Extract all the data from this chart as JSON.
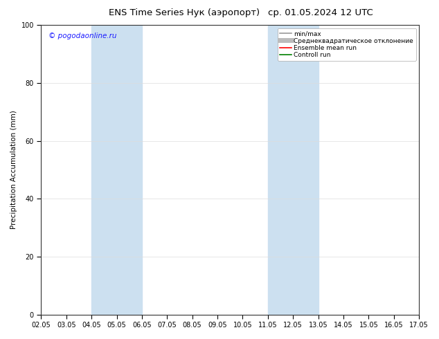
{
  "title_left": "ENS Time Series Нук (аэропорт)",
  "title_right": "ср. 01.05.2024 12 UTC",
  "ylabel": "Precipitation Accumulation (mm)",
  "ylim": [
    0,
    100
  ],
  "yticks": [
    0,
    20,
    40,
    60,
    80,
    100
  ],
  "xtick_labels": [
    "02.05",
    "03.05",
    "04.05",
    "05.05",
    "06.05",
    "07.05",
    "08.05",
    "09.05",
    "10.05",
    "11.05",
    "12.05",
    "13.05",
    "14.05",
    "15.05",
    "16.05",
    "17.05"
  ],
  "shaded_bands": [
    {
      "xmin": 2,
      "xmax": 4,
      "color": "#cce0f0"
    },
    {
      "xmin": 9,
      "xmax": 11,
      "color": "#cce0f0"
    }
  ],
  "legend_entries": [
    {
      "label": "min/max",
      "color": "#999999",
      "lw": 1.2
    },
    {
      "label": "Среднеквадратическое отклонение",
      "color": "#bbbbbb",
      "lw": 5
    },
    {
      "label": "Ensemble mean run",
      "color": "#ff0000",
      "lw": 1.2
    },
    {
      "label": "Controll run",
      "color": "#008000",
      "lw": 1.2
    }
  ],
  "watermark": "© pogodaonline.ru",
  "watermark_color": "#1a1aff",
  "background_color": "#ffffff",
  "title_fontsize": 9.5,
  "tick_fontsize": 7,
  "ylabel_fontsize": 7.5,
  "legend_fontsize": 6.5,
  "watermark_fontsize": 7.5
}
